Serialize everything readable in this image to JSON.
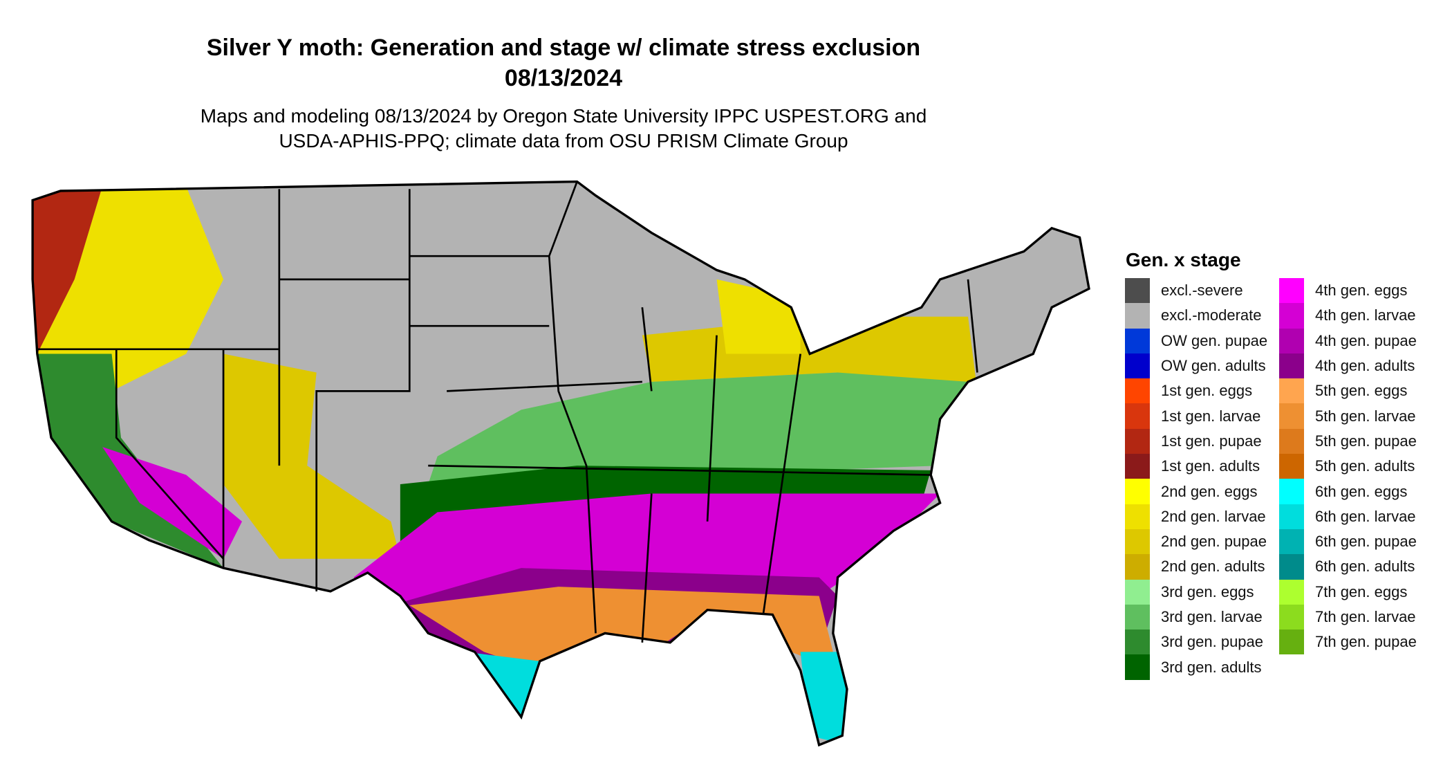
{
  "title": "Silver Y moth: Generation and stage w/ climate stress exclusion",
  "date": "08/13/2024",
  "subtitle_line1": "Maps and modeling 08/13/2024 by Oregon State University IPPC USPEST.ORG and",
  "subtitle_line2": "USDA-APHIS-PPQ; climate data from OSU PRISM Climate Group",
  "legend": {
    "title": "Gen. x stage",
    "left": [
      {
        "label": "excl.-severe",
        "color": "#4d4d4d"
      },
      {
        "label": "excl.-moderate",
        "color": "#b3b3b3"
      },
      {
        "label": "OW gen. pupae",
        "color": "#0039d9"
      },
      {
        "label": "OW gen. adults",
        "color": "#0000cc"
      },
      {
        "label": "1st gen. eggs",
        "color": "#ff4500"
      },
      {
        "label": "1st gen. larvae",
        "color": "#d9360d"
      },
      {
        "label": "1st gen. pupae",
        "color": "#b22712"
      },
      {
        "label": "1st gen. adults",
        "color": "#8b1a1a"
      },
      {
        "label": "2nd gen. eggs",
        "color": "#ffff00"
      },
      {
        "label": "2nd gen. larvae",
        "color": "#eee000"
      },
      {
        "label": "2nd gen. pupae",
        "color": "#ddc800"
      },
      {
        "label": "2nd gen. adults",
        "color": "#cdad00"
      },
      {
        "label": "3rd gen. eggs",
        "color": "#90ee90"
      },
      {
        "label": "3rd gen. larvae",
        "color": "#5fbf5f"
      },
      {
        "label": "3rd gen. pupae",
        "color": "#2e8b2e"
      },
      {
        "label": "3rd gen. adults",
        "color": "#006400"
      }
    ],
    "right": [
      {
        "label": "4th gen. eggs",
        "color": "#ff00ff"
      },
      {
        "label": "4th gen. larvae",
        "color": "#d400d4"
      },
      {
        "label": "4th gen. pupae",
        "color": "#b000b0"
      },
      {
        "label": "4th gen. adults",
        "color": "#8b008b"
      },
      {
        "label": "5th gen. eggs",
        "color": "#ffa54f"
      },
      {
        "label": "5th gen. larvae",
        "color": "#ee9032"
      },
      {
        "label": "5th gen. pupae",
        "color": "#dd7a1c"
      },
      {
        "label": "5th gen. adults",
        "color": "#cd6600"
      },
      {
        "label": "6th gen. eggs",
        "color": "#00ffff"
      },
      {
        "label": "6th gen. larvae",
        "color": "#00dddd"
      },
      {
        "label": "6th gen. pupae",
        "color": "#00b2b2"
      },
      {
        "label": "6th gen. adults",
        "color": "#008b8b"
      },
      {
        "label": "7th gen. eggs",
        "color": "#adff2f"
      },
      {
        "label": "7th gen. larvae",
        "color": "#8cdc1e"
      },
      {
        "label": "7th gen. pupae",
        "color": "#66b010"
      }
    ]
  }
}
